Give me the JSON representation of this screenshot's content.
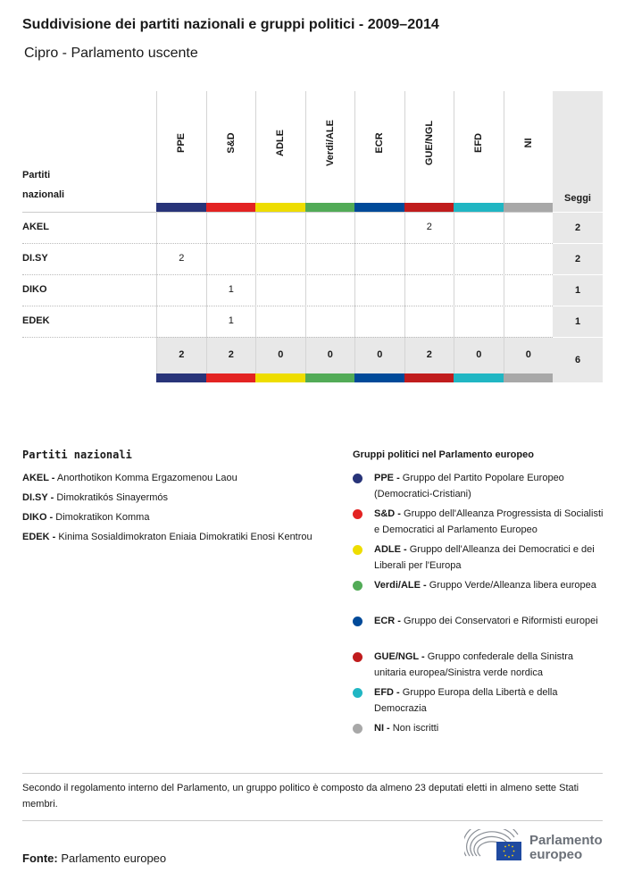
{
  "title": "Suddivisione dei partiti nazionali e gruppi politici - 2009–2014",
  "subtitle": "Cipro - Parlamento uscente",
  "table": {
    "row_header": "Partiti\nnazionali",
    "row_header_line1": "Partiti",
    "row_header_line2": "nazionali",
    "seats_header": "Seggi",
    "groups": [
      {
        "name": "PPE",
        "color": "#283479"
      },
      {
        "name": "S&D",
        "color": "#e32322"
      },
      {
        "name": "ADLE",
        "color": "#eedd00"
      },
      {
        "name": "Verdi/ALE",
        "color": "#52ab57"
      },
      {
        "name": "ECR",
        "color": "#004a99"
      },
      {
        "name": "GUE/NGL",
        "color": "#c01c1d"
      },
      {
        "name": "EFD",
        "color": "#20b6c3"
      },
      {
        "name": "NI",
        "color": "#a8a8a8"
      }
    ],
    "rows": [
      {
        "party": "AKEL",
        "values": [
          "",
          "",
          "",
          "",
          "",
          "2",
          "",
          ""
        ],
        "seats": "2"
      },
      {
        "party": "DI.SY",
        "values": [
          "2",
          "",
          "",
          "",
          "",
          "",
          "",
          ""
        ],
        "seats": "2"
      },
      {
        "party": "DIKO",
        "values": [
          "",
          "1",
          "",
          "",
          "",
          "",
          "",
          ""
        ],
        "seats": "1"
      },
      {
        "party": "EDEK",
        "values": [
          "",
          "1",
          "",
          "",
          "",
          "",
          "",
          ""
        ],
        "seats": "1"
      }
    ],
    "totals": [
      "2",
      "2",
      "0",
      "0",
      "0",
      "2",
      "0",
      "0"
    ],
    "total_seats": "6"
  },
  "legend_national": {
    "title": "Partiti nazionali",
    "items": [
      {
        "abbr": "AKEL -",
        "name": "Anorthotikon Komma Ergazomenou Laou"
      },
      {
        "abbr": "DI.SY -",
        "name": "Dimokratikós Sinayermós"
      },
      {
        "abbr": "DIKO -",
        "name": "Dimokratikon Komma"
      },
      {
        "abbr": "EDEK -",
        "name": "Kinima Sosialdimokraton Eniaia Dimokratiki Enosi Kentrou"
      }
    ]
  },
  "legend_groups": {
    "title": "Gruppi politici nel Parlamento europeo",
    "items": [
      {
        "abbr": "PPE -",
        "name": "Gruppo del Partito Popolare Europeo (Democratici-Cristiani)",
        "color": "#283479"
      },
      {
        "abbr": "S&D -",
        "name": "Gruppo dell'Alleanza Progressista di Socialisti e Democratici al Parlamento Europeo",
        "color": "#e32322"
      },
      {
        "abbr": "ADLE -",
        "name": "Gruppo dell'Alleanza dei Democratici e dei Liberali per l'Europa",
        "color": "#eedd00"
      },
      {
        "abbr": "Verdi/ALE -",
        "name": "Gruppo Verde/Alleanza libera europea",
        "color": "#52ab57"
      },
      {
        "abbr": "ECR -",
        "name": "Gruppo dei Conservatori e Riformisti europei",
        "color": "#004a99"
      },
      {
        "abbr": "GUE/NGL -",
        "name": "Gruppo confederale della Sinistra unitaria europea/Sinistra verde nordica",
        "color": "#c01c1d"
      },
      {
        "abbr": "EFD -",
        "name": "Gruppo Europa della Libertà e della Democrazia",
        "color": "#20b6c3"
      },
      {
        "abbr": "NI -",
        "name": "Non iscritti",
        "color": "#a8a8a8"
      }
    ]
  },
  "note": "Secondo il regolamento interno del Parlamento, un gruppo politico è composto da almeno 23 deputati eletti in almeno sette Stati membri.",
  "source": {
    "label": "Fonte:",
    "value": "Parlamento europeo"
  },
  "logo": {
    "text_line1": "Parlamento",
    "text_line2": "europeo"
  }
}
